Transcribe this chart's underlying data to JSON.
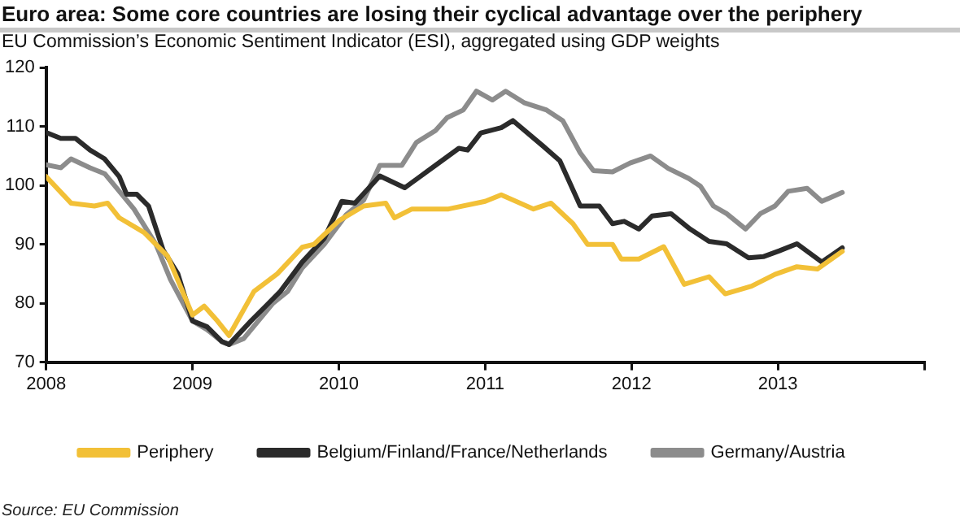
{
  "chart_data": {
    "type": "line",
    "title": "Euro area: Some core countries are losing their cyclical advantage over the periphery",
    "subtitle": "EU Commission’s Economic Sentiment Indicator (ESI), aggregated using GDP weights",
    "annotations": [
      "Source: EU Commission"
    ],
    "xlim": [
      2008,
      2014
    ],
    "xticks": [
      2008,
      2009,
      2010,
      2011,
      2012,
      2013,
      {
        "value": 2014,
        "label": null
      }
    ],
    "ylim": [
      70,
      120
    ],
    "yticks": [
      70,
      80,
      90,
      100,
      110,
      120
    ],
    "grid": false,
    "legend": "bottom",
    "marker": "none",
    "line_style": "solid",
    "series": [
      {
        "name": "Periphery",
        "color": "#f2c037",
        "x": [
          2008.0,
          2008.17,
          2008.33,
          2008.42,
          2008.5,
          2008.67,
          2008.83,
          2009.0,
          2009.08,
          2009.17,
          2009.25,
          2009.42,
          2009.58,
          2009.75,
          2009.83,
          2010.0,
          2010.17,
          2010.32,
          2010.38,
          2010.5,
          2010.75,
          2011.0,
          2011.11,
          2011.33,
          2011.45,
          2011.6,
          2011.7,
          2011.87,
          2011.93,
          2012.05,
          2012.22,
          2012.36,
          2012.53,
          2012.64,
          2012.82,
          2012.98,
          2013.13,
          2013.27,
          2013.44
        ],
        "values": [
          101.5,
          97,
          96.5,
          97,
          94.5,
          92,
          88,
          78,
          79.5,
          77,
          74.5,
          82,
          85,
          89.5,
          90,
          94,
          96.5,
          97,
          94.5,
          96,
          96,
          97.3,
          98.4,
          96,
          97,
          93.5,
          90,
          90,
          87.5,
          87.5,
          89.6,
          83.2,
          84.5,
          81.6,
          82.9,
          84.9,
          86.2,
          85.8,
          88.8
        ]
      },
      {
        "name": "Belgium/Finland/France/Netherlands",
        "color": "#2b2b2b",
        "x": [
          2008.0,
          2008.1,
          2008.2,
          2008.3,
          2008.4,
          2008.5,
          2008.55,
          2008.62,
          2008.7,
          2008.8,
          2008.9,
          2009.0,
          2009.1,
          2009.2,
          2009.25,
          2009.4,
          2009.5,
          2009.6,
          2009.75,
          2009.9,
          2010.02,
          2010.11,
          2010.28,
          2010.45,
          2010.66,
          2010.82,
          2010.88,
          2010.97,
          2011.11,
          2011.19,
          2011.39,
          2011.51,
          2011.65,
          2011.78,
          2011.87,
          2011.95,
          2012.05,
          2012.14,
          2012.27,
          2012.4,
          2012.53,
          2012.65,
          2012.8,
          2012.9,
          2013.01,
          2013.13,
          2013.3,
          2013.44
        ],
        "values": [
          109,
          108,
          108,
          106,
          104.5,
          101.5,
          98.5,
          98.5,
          96.5,
          89,
          85,
          77,
          76,
          73.5,
          73,
          77,
          79.5,
          82,
          87,
          91,
          97.3,
          97,
          101.6,
          99.6,
          103.4,
          106.3,
          106,
          108.9,
          109.8,
          111,
          106.8,
          104.2,
          96.5,
          96.5,
          93.5,
          93.9,
          92.6,
          94.8,
          95.2,
          92.6,
          90.5,
          90.1,
          87.7,
          87.9,
          88.9,
          90.1,
          87,
          89.4
        ]
      },
      {
        "name": "Germany/Austria",
        "color": "#8c8c8c",
        "x": [
          2008.0,
          2008.1,
          2008.17,
          2008.3,
          2008.4,
          2008.5,
          2008.6,
          2008.75,
          2008.85,
          2009.0,
          2009.1,
          2009.2,
          2009.25,
          2009.35,
          2009.45,
          2009.55,
          2009.65,
          2009.75,
          2009.9,
          2010.05,
          2010.17,
          2010.28,
          2010.43,
          2010.53,
          2010.66,
          2010.74,
          2010.85,
          2010.94,
          2011.05,
          2011.14,
          2011.27,
          2011.42,
          2011.53,
          2011.65,
          2011.74,
          2011.87,
          2011.99,
          2012.13,
          2012.25,
          2012.39,
          2012.47,
          2012.56,
          2012.65,
          2012.78,
          2012.88,
          2012.98,
          2013.07,
          2013.2,
          2013.3,
          2013.44
        ],
        "values": [
          103.5,
          103,
          104.5,
          103,
          102,
          99,
          96,
          90,
          84,
          77,
          75.5,
          73.5,
          73,
          74,
          77,
          80,
          82,
          86,
          90,
          95,
          97.5,
          103.4,
          103.4,
          107.3,
          109.3,
          111.5,
          112.8,
          116,
          114.5,
          116,
          114,
          112.8,
          111,
          105.5,
          102.5,
          102.3,
          103.8,
          105,
          102.9,
          101.2,
          99.9,
          96.5,
          95.2,
          92.6,
          95.2,
          96.5,
          99,
          99.5,
          97.3,
          98.8
        ]
      }
    ]
  }
}
